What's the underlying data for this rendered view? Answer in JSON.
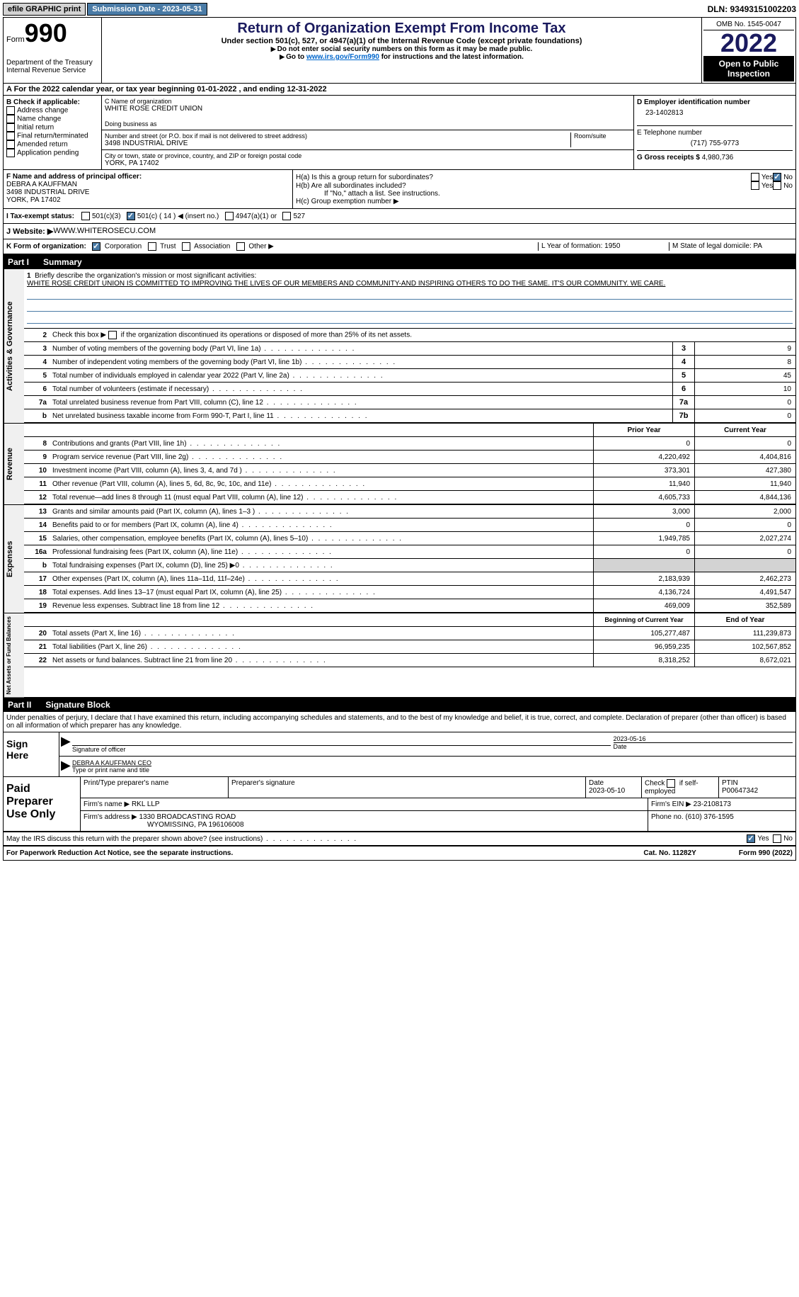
{
  "topbar": {
    "efile": "efile GRAPHIC print",
    "submission": "Submission Date - 2023-05-31",
    "dln": "DLN: 93493151002203"
  },
  "header": {
    "form_label": "Form",
    "form_num": "990",
    "title": "Return of Organization Exempt From Income Tax",
    "subtitle": "Under section 501(c), 527, or 4947(a)(1) of the Internal Revenue Code (except private foundations)",
    "warn": "Do not enter social security numbers on this form as it may be made public.",
    "goto": "Go to www.irs.gov/Form990 for instructions and the latest information.",
    "goto_link": "www.irs.gov/Form990",
    "dept": "Department of the Treasury\nInternal Revenue Service",
    "omb": "OMB No. 1545-0047",
    "year": "2022",
    "open": "Open to Public Inspection"
  },
  "row_a": "A For the 2022 calendar year, or tax year beginning 01-01-2022     , and ending 12-31-2022",
  "col_b": {
    "label": "B Check if applicable:",
    "opts": [
      "Address change",
      "Name change",
      "Initial return",
      "Final return/terminated",
      "Amended return",
      "Application pending"
    ]
  },
  "col_c": {
    "name_label": "C Name of organization",
    "name": "WHITE ROSE CREDIT UNION",
    "dba_label": "Doing business as",
    "street_label": "Number and street (or P.O. box if mail is not delivered to street address)",
    "room_label": "Room/suite",
    "street": "3498 INDUSTRIAL DRIVE",
    "city_label": "City or town, state or province, country, and ZIP or foreign postal code",
    "city": "YORK, PA  17402"
  },
  "col_d": {
    "ein_label": "D Employer identification number",
    "ein": "23-1402813",
    "phone_label": "E Telephone number",
    "phone": "(717) 755-9773",
    "gross_label": "G Gross receipts $",
    "gross": "4,980,736"
  },
  "row_f": {
    "label": "F  Name and address of principal officer:",
    "name": "DEBRA A KAUFFMAN",
    "street": "3498 INDUSTRIAL DRIVE",
    "city": "YORK, PA  17402"
  },
  "row_h": {
    "ha": "H(a)  Is this a group return for subordinates?",
    "hb": "H(b)  Are all subordinates included?",
    "hb_note": "If \"No,\" attach a list. See instructions.",
    "hc": "H(c)  Group exemption number ▶"
  },
  "row_i": {
    "label": "I   Tax-exempt status:",
    "opt1": "501(c)(3)",
    "opt2": "501(c) ( 14 ) ◀ (insert no.)",
    "opt3": "4947(a)(1) or",
    "opt4": "527"
  },
  "row_j": {
    "label": "J   Website: ▶",
    "value": " WWW.WHITEROSECU.COM"
  },
  "row_k": {
    "label": "K Form of organization:",
    "opts": [
      "Corporation",
      "Trust",
      "Association",
      "Other ▶"
    ],
    "l": "L Year of formation: 1950",
    "m": "M State of legal domicile: PA"
  },
  "part1": {
    "num": "Part I",
    "title": "Summary"
  },
  "mission": {
    "num": "1",
    "label": "Briefly describe the organization's mission or most significant activities:",
    "text": "WHITE ROSE CREDIT UNION IS COMMITTED TO IMPROVING THE LIVES OF OUR MEMBERS AND COMMUNITY-AND INSPIRING OTHERS TO DO THE SAME. IT'S OUR COMMUNITY. WE CARE."
  },
  "line2": {
    "num": "2",
    "text": "Check this box ▶       if the organization discontinued its operations or disposed of more than 25% of its net assets."
  },
  "gov_rows": [
    {
      "n": "3",
      "d": "Number of voting members of the governing body (Part VI, line 1a)",
      "b": "3",
      "v": "9"
    },
    {
      "n": "4",
      "d": "Number of independent voting members of the governing body (Part VI, line 1b)",
      "b": "4",
      "v": "8"
    },
    {
      "n": "5",
      "d": "Total number of individuals employed in calendar year 2022 (Part V, line 2a)",
      "b": "5",
      "v": "45"
    },
    {
      "n": "6",
      "d": "Total number of volunteers (estimate if necessary)",
      "b": "6",
      "v": "10"
    },
    {
      "n": "7a",
      "d": "Total unrelated business revenue from Part VIII, column (C), line 12",
      "b": "7a",
      "v": "0"
    },
    {
      "n": "b",
      "d": "Net unrelated business taxable income from Form 990-T, Part I, line 11",
      "b": "7b",
      "v": "0"
    }
  ],
  "rev_hdr": {
    "prior": "Prior Year",
    "current": "Current Year"
  },
  "rev_rows": [
    {
      "n": "8",
      "d": "Contributions and grants (Part VIII, line 1h)",
      "p": "0",
      "c": "0"
    },
    {
      "n": "9",
      "d": "Program service revenue (Part VIII, line 2g)",
      "p": "4,220,492",
      "c": "4,404,816"
    },
    {
      "n": "10",
      "d": "Investment income (Part VIII, column (A), lines 3, 4, and 7d )",
      "p": "373,301",
      "c": "427,380"
    },
    {
      "n": "11",
      "d": "Other revenue (Part VIII, column (A), lines 5, 6d, 8c, 9c, 10c, and 11e)",
      "p": "11,940",
      "c": "11,940"
    },
    {
      "n": "12",
      "d": "Total revenue—add lines 8 through 11 (must equal Part VIII, column (A), line 12)",
      "p": "4,605,733",
      "c": "4,844,136"
    }
  ],
  "exp_rows": [
    {
      "n": "13",
      "d": "Grants and similar amounts paid (Part IX, column (A), lines 1–3 )",
      "p": "3,000",
      "c": "2,000"
    },
    {
      "n": "14",
      "d": "Benefits paid to or for members (Part IX, column (A), line 4)",
      "p": "0",
      "c": "0"
    },
    {
      "n": "15",
      "d": "Salaries, other compensation, employee benefits (Part IX, column (A), lines 5–10)",
      "p": "1,949,785",
      "c": "2,027,274"
    },
    {
      "n": "16a",
      "d": "Professional fundraising fees (Part IX, column (A), line 11e)",
      "p": "0",
      "c": "0"
    },
    {
      "n": "b",
      "d": "Total fundraising expenses (Part IX, column (D), line 25) ▶0",
      "p": "",
      "c": "",
      "gray": true
    },
    {
      "n": "17",
      "d": "Other expenses (Part IX, column (A), lines 11a–11d, 11f–24e)",
      "p": "2,183,939",
      "c": "2,462,273"
    },
    {
      "n": "18",
      "d": "Total expenses. Add lines 13–17 (must equal Part IX, column (A), line 25)",
      "p": "4,136,724",
      "c": "4,491,547"
    },
    {
      "n": "19",
      "d": "Revenue less expenses. Subtract line 18 from line 12",
      "p": "469,009",
      "c": "352,589"
    }
  ],
  "net_hdr": {
    "begin": "Beginning of Current Year",
    "end": "End of Year"
  },
  "net_rows": [
    {
      "n": "20",
      "d": "Total assets (Part X, line 16)",
      "p": "105,277,487",
      "c": "111,239,873"
    },
    {
      "n": "21",
      "d": "Total liabilities (Part X, line 26)",
      "p": "96,959,235",
      "c": "102,567,852"
    },
    {
      "n": "22",
      "d": "Net assets or fund balances. Subtract line 21 from line 20",
      "p": "8,318,252",
      "c": "8,672,021"
    }
  ],
  "part2": {
    "num": "Part II",
    "title": "Signature Block"
  },
  "penalty": "Under penalties of perjury, I declare that I have examined this return, including accompanying schedules and statements, and to the best of my knowledge and belief, it is true, correct, and complete. Declaration of preparer (other than officer) is based on all information of which preparer has any knowledge.",
  "sign": {
    "here": "Sign Here",
    "sig_label": "Signature of officer",
    "date": "2023-05-16",
    "date_label": "Date",
    "name": "DEBRA A KAUFFMAN CEO",
    "name_label": "Type or print name and title"
  },
  "prep": {
    "label": "Paid Preparer Use Only",
    "print_label": "Print/Type preparer's name",
    "sig_label": "Preparer's signature",
    "date_label": "Date",
    "date": "2023-05-10",
    "check_label": "Check         if self-employed",
    "ptin_label": "PTIN",
    "ptin": "P00647342",
    "firm_name_label": "Firm's name    ▶",
    "firm_name": "RKL LLP",
    "firm_ein_label": "Firm's EIN ▶",
    "firm_ein": "23-2108173",
    "firm_addr_label": "Firm's address ▶",
    "firm_addr1": "1330 BROADCASTING ROAD",
    "firm_addr2": "WYOMISSING, PA  196106008",
    "phone_label": "Phone no.",
    "phone": "(610) 376-1595"
  },
  "discuss": "May the IRS discuss this return with the preparer shown above? (see instructions)",
  "footer": {
    "left": "For Paperwork Reduction Act Notice, see the separate instructions.",
    "mid": "Cat. No. 11282Y",
    "right": "Form 990 (2022)"
  },
  "vtabs": {
    "gov": "Activities & Governance",
    "rev": "Revenue",
    "exp": "Expenses",
    "net": "Net Assets or Fund Balances"
  },
  "yes": "Yes",
  "no": "No"
}
